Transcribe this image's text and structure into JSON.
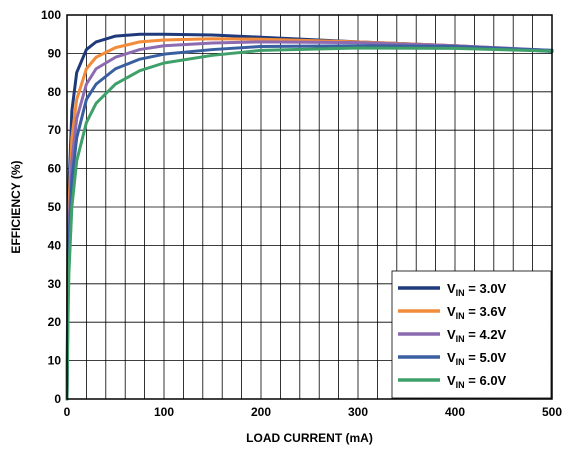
{
  "chart_data": {
    "type": "line",
    "title": "",
    "xlabel": "LOAD CURRENT (mA)",
    "ylabel": "EFFICIENCY (%)",
    "xlim": [
      0,
      500
    ],
    "ylim": [
      0,
      100
    ],
    "xticks": [
      0,
      100,
      200,
      300,
      400,
      500
    ],
    "yticks": [
      0,
      10,
      20,
      30,
      40,
      50,
      60,
      70,
      80,
      90,
      100
    ],
    "grid": true,
    "legend_position": "bottom-right",
    "series": [
      {
        "name": "VIN = 3.0V",
        "label_main": "V",
        "label_sub": "IN",
        "label_rest": " = 3.0V",
        "color": "#1f3a7a",
        "x": [
          0,
          1,
          2,
          5,
          10,
          20,
          30,
          50,
          75,
          100,
          150,
          200,
          300,
          400,
          500
        ],
        "y": [
          0,
          40,
          55,
          75,
          85,
          91,
          93,
          94.5,
          95,
          95,
          94.8,
          94.2,
          93,
          92,
          90.5
        ]
      },
      {
        "name": "VIN = 3.6V",
        "label_main": "V",
        "label_sub": "IN",
        "label_rest": " = 3.6V",
        "color": "#f28b3a",
        "x": [
          0,
          1,
          2,
          5,
          10,
          20,
          30,
          50,
          75,
          100,
          150,
          200,
          300,
          400,
          500
        ],
        "y": [
          0,
          35,
          50,
          68,
          78,
          86,
          89,
          91.5,
          93,
          93.5,
          93.8,
          93.7,
          93,
          92,
          90.7
        ]
      },
      {
        "name": "VIN = 4.2V",
        "label_main": "V",
        "label_sub": "IN",
        "label_rest": " = 4.2V",
        "color": "#8c6bb1",
        "x": [
          0,
          1,
          2,
          5,
          10,
          20,
          30,
          50,
          75,
          100,
          150,
          200,
          300,
          400,
          500
        ],
        "y": [
          0,
          30,
          45,
          62,
          73,
          82,
          86,
          89,
          91,
          92,
          92.7,
          93,
          92.8,
          92,
          90.8
        ]
      },
      {
        "name": "VIN = 5.0V",
        "label_main": "V",
        "label_sub": "IN",
        "label_rest": " = 5.0V",
        "color": "#3a5fa0",
        "x": [
          0,
          1,
          2,
          5,
          10,
          20,
          30,
          50,
          75,
          100,
          150,
          200,
          300,
          400,
          500
        ],
        "y": [
          0,
          25,
          40,
          57,
          68,
          78,
          82,
          86,
          88.5,
          89.8,
          91,
          91.8,
          92,
          91.8,
          90.8
        ]
      },
      {
        "name": "VIN = 6.0V",
        "label_main": "V",
        "label_sub": "IN",
        "label_rest": " = 6.0V",
        "color": "#3fa06a",
        "x": [
          0,
          1,
          2,
          5,
          10,
          20,
          30,
          50,
          75,
          100,
          150,
          200,
          300,
          400,
          500
        ],
        "y": [
          0,
          20,
          33,
          50,
          62,
          72,
          77,
          82,
          85.5,
          87.5,
          89.5,
          90.8,
          91.4,
          91.3,
          90.6
        ]
      }
    ]
  }
}
